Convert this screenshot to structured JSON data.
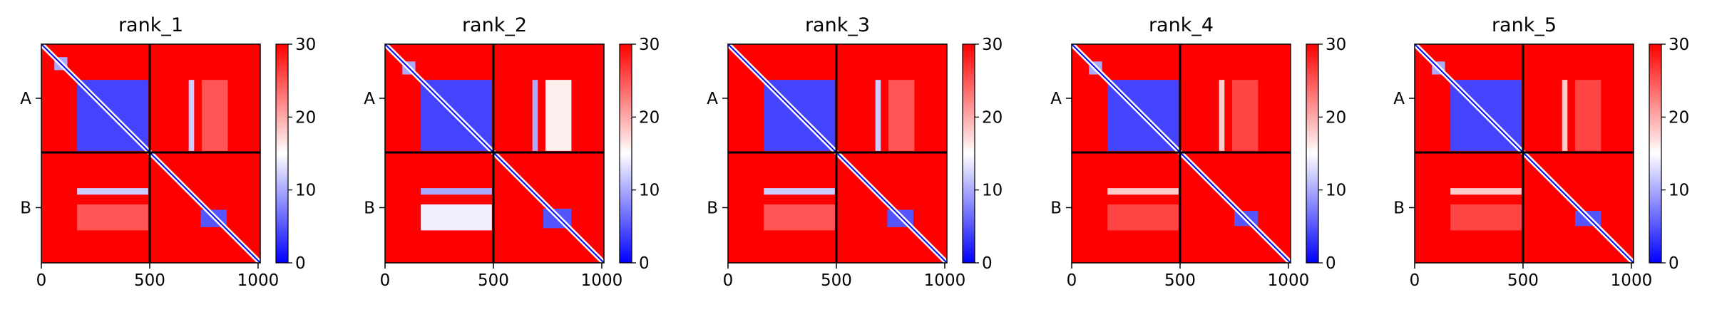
{
  "chart_data": [
    {
      "type": "heatmap",
      "title": "rank_1",
      "xticks": [
        0,
        500,
        1000
      ],
      "xlim": [
        0,
        1010
      ],
      "chains": [
        {
          "label": "A",
          "start": 0,
          "end": 500
        },
        {
          "label": "B",
          "start": 500,
          "end": 1010
        }
      ],
      "colorbar": {
        "min": 0,
        "max": 30,
        "ticks": [
          0,
          10,
          20,
          30
        ],
        "colors": [
          "#0000ff",
          "#ffffff",
          "#ff0000"
        ]
      },
      "regions": [
        {
          "x": [
            165,
            493
          ],
          "y": [
            165,
            493
          ],
          "value": 4
        },
        {
          "x": [
            60,
            120
          ],
          "y": [
            60,
            120
          ],
          "value": 10
        },
        {
          "x": [
            680,
            705
          ],
          "y": [
            165,
            493
          ],
          "value": 12
        },
        {
          "x": [
            740,
            860
          ],
          "y": [
            165,
            493
          ],
          "value": 25
        },
        {
          "x": [
            165,
            493
          ],
          "y": [
            665,
            695
          ],
          "value": 12
        },
        {
          "x": [
            165,
            493
          ],
          "y": [
            740,
            860
          ],
          "value": 25
        },
        {
          "x": [
            735,
            855
          ],
          "y": [
            765,
            845
          ],
          "value": 5
        }
      ]
    },
    {
      "type": "heatmap",
      "title": "rank_2",
      "xticks": [
        0,
        500,
        1000
      ],
      "xlim": [
        0,
        1010
      ],
      "chains": [
        {
          "label": "A",
          "start": 0,
          "end": 500
        },
        {
          "label": "B",
          "start": 500,
          "end": 1010
        }
      ],
      "colorbar": {
        "min": 0,
        "max": 30,
        "ticks": [
          0,
          10,
          20,
          30
        ],
        "colors": [
          "#0000ff",
          "#ffffff",
          "#ff0000"
        ]
      },
      "regions": [
        {
          "x": [
            165,
            493
          ],
          "y": [
            165,
            493
          ],
          "value": 4
        },
        {
          "x": [
            80,
            140
          ],
          "y": [
            80,
            140
          ],
          "value": 10
        },
        {
          "x": [
            680,
            705
          ],
          "y": [
            165,
            493
          ],
          "value": 10
        },
        {
          "x": [
            740,
            860
          ],
          "y": [
            165,
            493
          ],
          "value": 16
        },
        {
          "x": [
            165,
            493
          ],
          "y": [
            665,
            695
          ],
          "value": 10
        },
        {
          "x": [
            165,
            493
          ],
          "y": [
            740,
            860
          ],
          "value": 14
        },
        {
          "x": [
            730,
            860
          ],
          "y": [
            760,
            850
          ],
          "value": 5
        }
      ]
    },
    {
      "type": "heatmap",
      "title": "rank_3",
      "xticks": [
        0,
        500,
        1000
      ],
      "xlim": [
        0,
        1010
      ],
      "chains": [
        {
          "label": "A",
          "start": 0,
          "end": 500
        },
        {
          "label": "B",
          "start": 500,
          "end": 1010
        }
      ],
      "colorbar": {
        "min": 0,
        "max": 30,
        "ticks": [
          0,
          10,
          20,
          30
        ],
        "colors": [
          "#0000ff",
          "#ffffff",
          "#ff0000"
        ]
      },
      "regions": [
        {
          "x": [
            165,
            493
          ],
          "y": [
            165,
            493
          ],
          "value": 4
        },
        {
          "x": [
            680,
            705
          ],
          "y": [
            165,
            493
          ],
          "value": 12
        },
        {
          "x": [
            740,
            860
          ],
          "y": [
            165,
            493
          ],
          "value": 25
        },
        {
          "x": [
            165,
            493
          ],
          "y": [
            665,
            695
          ],
          "value": 12
        },
        {
          "x": [
            165,
            493
          ],
          "y": [
            740,
            860
          ],
          "value": 25
        },
        {
          "x": [
            735,
            855
          ],
          "y": [
            765,
            845
          ],
          "value": 5
        }
      ]
    },
    {
      "type": "heatmap",
      "title": "rank_4",
      "xticks": [
        0,
        500,
        1000
      ],
      "xlim": [
        0,
        1010
      ],
      "chains": [
        {
          "label": "A",
          "start": 0,
          "end": 500
        },
        {
          "label": "B",
          "start": 500,
          "end": 1010
        }
      ],
      "colorbar": {
        "min": 0,
        "max": 30,
        "ticks": [
          0,
          10,
          20,
          30
        ],
        "colors": [
          "#0000ff",
          "#ffffff",
          "#ff0000"
        ]
      },
      "regions": [
        {
          "x": [
            165,
            493
          ],
          "y": [
            165,
            493
          ],
          "value": 4
        },
        {
          "x": [
            80,
            140
          ],
          "y": [
            80,
            140
          ],
          "value": 10
        },
        {
          "x": [
            680,
            705
          ],
          "y": [
            165,
            493
          ],
          "value": 18
        },
        {
          "x": [
            740,
            860
          ],
          "y": [
            165,
            493
          ],
          "value": 26
        },
        {
          "x": [
            165,
            493
          ],
          "y": [
            665,
            695
          ],
          "value": 18
        },
        {
          "x": [
            165,
            493
          ],
          "y": [
            740,
            860
          ],
          "value": 26
        },
        {
          "x": [
            750,
            860
          ],
          "y": [
            770,
            840
          ],
          "value": 5
        }
      ]
    },
    {
      "type": "heatmap",
      "title": "rank_5",
      "xticks": [
        0,
        500,
        1000
      ],
      "xlim": [
        0,
        1010
      ],
      "chains": [
        {
          "label": "A",
          "start": 0,
          "end": 500
        },
        {
          "label": "B",
          "start": 500,
          "end": 1010
        }
      ],
      "colorbar": {
        "min": 0,
        "max": 30,
        "ticks": [
          0,
          10,
          20,
          30
        ],
        "colors": [
          "#0000ff",
          "#ffffff",
          "#ff0000"
        ]
      },
      "regions": [
        {
          "x": [
            165,
            493
          ],
          "y": [
            165,
            493
          ],
          "value": 4
        },
        {
          "x": [
            80,
            140
          ],
          "y": [
            80,
            140
          ],
          "value": 10
        },
        {
          "x": [
            680,
            705
          ],
          "y": [
            165,
            493
          ],
          "value": 18
        },
        {
          "x": [
            740,
            860
          ],
          "y": [
            165,
            493
          ],
          "value": 26
        },
        {
          "x": [
            165,
            493
          ],
          "y": [
            665,
            695
          ],
          "value": 18
        },
        {
          "x": [
            165,
            493
          ],
          "y": [
            740,
            860
          ],
          "value": 26
        },
        {
          "x": [
            740,
            860
          ],
          "y": [
            770,
            840
          ],
          "value": 5
        }
      ]
    }
  ]
}
